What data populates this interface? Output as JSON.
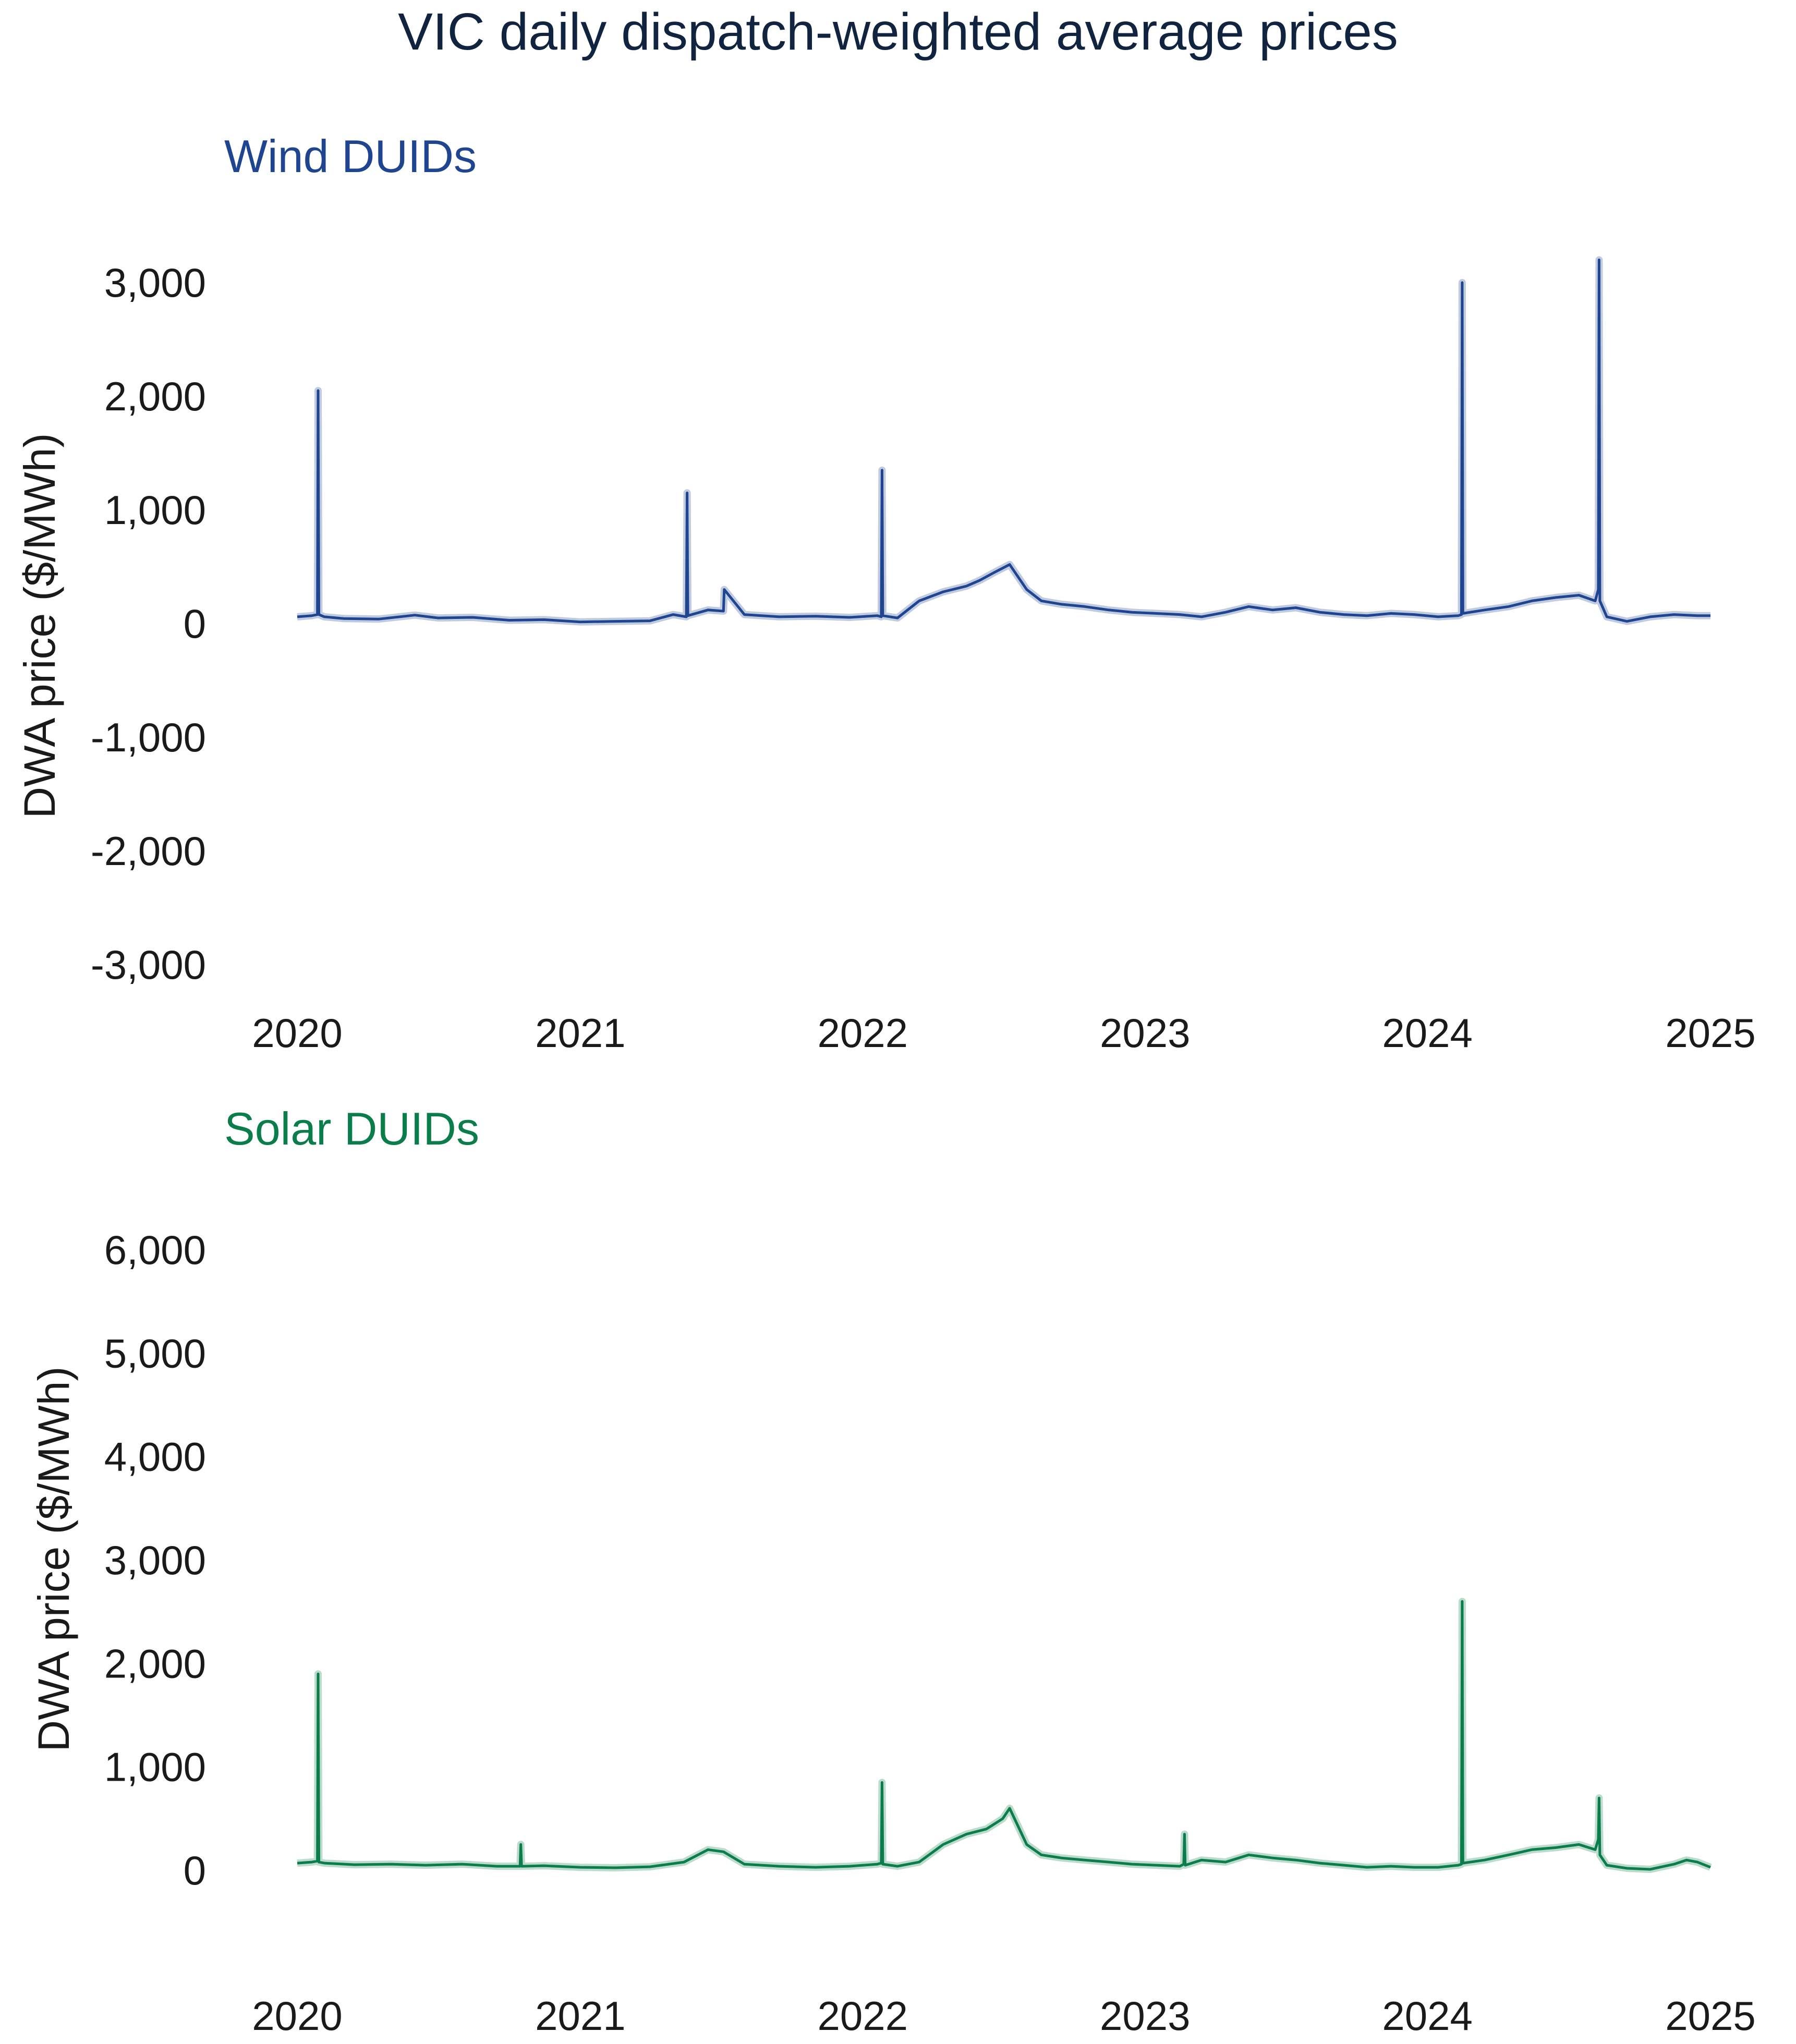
{
  "title": "VIC daily dispatch-weighted average prices",
  "colors": {
    "title": "#10233f",
    "wind": "#1f4591",
    "solar": "#0a7d4b",
    "text": "#1a1a1a"
  },
  "chart_data": [
    {
      "type": "line",
      "subtitle": "Wind DUIDs",
      "color": "#1f4591",
      "ylabel": "DWA price ($/MWh)",
      "xlabel": "",
      "xlim": [
        "2020-01-01",
        "2025-01-01"
      ],
      "ylim": [
        -3000,
        3500
      ],
      "yticks": [
        3000,
        2000,
        1000,
        0,
        -1000,
        -2000,
        -3000
      ],
      "ytick_labels": [
        "3,000",
        "2,000",
        "1,000",
        "0",
        "-1,000",
        "-2,000",
        "-3,000"
      ],
      "xticks": [
        "2020-01-01",
        "2021-01-01",
        "2022-01-01",
        "2023-01-01",
        "2024-01-01",
        "2025-01-01"
      ],
      "xtick_labels": [
        "2020",
        "2021",
        "2022",
        "2023",
        "2024",
        "2025"
      ],
      "grid": false,
      "series": [
        {
          "x": [
            "2020-01-01",
            "2020-01-20",
            "2020-01-27",
            "2020-01-28",
            "2020-01-29",
            "2020-02-05",
            "2020-03-01",
            "2020-04-15",
            "2020-06-01",
            "2020-07-01",
            "2020-08-15",
            "2020-10-01",
            "2020-11-15",
            "2021-01-01",
            "2021-02-15",
            "2021-04-01",
            "2021-05-01",
            "2021-05-18",
            "2021-05-19",
            "2021-05-20",
            "2021-06-15",
            "2021-07-05",
            "2021-07-06",
            "2021-08-01",
            "2021-09-15",
            "2021-11-01",
            "2021-12-15",
            "2022-01-20",
            "2022-01-25",
            "2022-01-26",
            "2022-01-27",
            "2022-02-15",
            "2022-03-15",
            "2022-04-15",
            "2022-05-15",
            "2022-06-01",
            "2022-06-20",
            "2022-07-10",
            "2022-08-01",
            "2022-08-20",
            "2022-09-15",
            "2022-10-15",
            "2022-11-15",
            "2022-12-15",
            "2023-01-15",
            "2023-02-15",
            "2023-03-15",
            "2023-04-15",
            "2023-05-15",
            "2023-06-15",
            "2023-07-15",
            "2023-08-15",
            "2023-09-15",
            "2023-10-15",
            "2023-11-15",
            "2023-12-15",
            "2024-01-15",
            "2024-02-10",
            "2024-02-14",
            "2024-02-15",
            "2024-02-16",
            "2024-03-15",
            "2024-04-15",
            "2024-05-15",
            "2024-06-15",
            "2024-07-15",
            "2024-08-05",
            "2024-08-09",
            "2024-08-10",
            "2024-08-11",
            "2024-08-20",
            "2024-09-15",
            "2024-10-15",
            "2024-11-15",
            "2024-12-15",
            "2025-01-01"
          ],
          "y": [
            60,
            70,
            80,
            2050,
            80,
            60,
            45,
            40,
            75,
            50,
            55,
            30,
            35,
            15,
            20,
            25,
            80,
            60,
            1150,
            70,
            120,
            110,
            300,
            80,
            60,
            65,
            55,
            70,
            60,
            1350,
            70,
            50,
            200,
            280,
            330,
            380,
            450,
            520,
            300,
            200,
            170,
            150,
            120,
            100,
            90,
            80,
            60,
            100,
            150,
            120,
            140,
            100,
            80,
            70,
            90,
            80,
            60,
            70,
            80,
            3000,
            90,
            120,
            150,
            200,
            230,
            250,
            200,
            300,
            3200,
            200,
            60,
            20,
            60,
            80,
            70,
            70
          ]
        }
      ]
    },
    {
      "type": "line",
      "subtitle": "Solar DUIDs",
      "color": "#0a7d4b",
      "ylabel": "DWA price ($/MWh)",
      "xlabel": "",
      "xlim": [
        "2020-01-01",
        "2025-01-01"
      ],
      "ylim": [
        -600,
        6500
      ],
      "yticks": [
        6000,
        5000,
        4000,
        3000,
        2000,
        1000,
        0
      ],
      "ytick_labels": [
        "6,000",
        "5,000",
        "4,000",
        "3,000",
        "2,000",
        "1,000",
        "0"
      ],
      "xticks": [
        "2020-01-01",
        "2021-01-01",
        "2022-01-01",
        "2023-01-01",
        "2024-01-01",
        "2025-01-01"
      ],
      "xtick_labels": [
        "2020",
        "2021",
        "2022",
        "2023",
        "2024",
        "2025"
      ],
      "grid": false,
      "series": [
        {
          "x": [
            "2020-01-01",
            "2020-01-20",
            "2020-01-27",
            "2020-01-28",
            "2020-01-29",
            "2020-02-05",
            "2020-03-15",
            "2020-05-01",
            "2020-06-15",
            "2020-08-01",
            "2020-09-15",
            "2020-10-15",
            "2020-10-16",
            "2020-10-17",
            "2020-11-15",
            "2021-01-01",
            "2021-02-15",
            "2021-04-01",
            "2021-05-15",
            "2021-06-15",
            "2021-07-05",
            "2021-08-01",
            "2021-09-15",
            "2021-11-01",
            "2021-12-15",
            "2022-01-20",
            "2022-01-25",
            "2022-01-26",
            "2022-01-27",
            "2022-02-15",
            "2022-03-15",
            "2022-04-15",
            "2022-05-15",
            "2022-06-10",
            "2022-07-01",
            "2022-07-10",
            "2022-08-01",
            "2022-08-20",
            "2022-09-15",
            "2022-10-15",
            "2022-11-15",
            "2022-12-15",
            "2023-01-15",
            "2023-02-15",
            "2023-02-20",
            "2023-02-21",
            "2023-02-22",
            "2023-03-15",
            "2023-04-15",
            "2023-05-15",
            "2023-06-15",
            "2023-07-15",
            "2023-08-15",
            "2023-09-15",
            "2023-10-15",
            "2023-11-15",
            "2023-12-15",
            "2024-01-15",
            "2024-02-10",
            "2024-02-14",
            "2024-02-15",
            "2024-02-16",
            "2024-03-15",
            "2024-04-15",
            "2024-05-15",
            "2024-06-15",
            "2024-07-15",
            "2024-08-05",
            "2024-08-09",
            "2024-08-10",
            "2024-08-11",
            "2024-08-20",
            "2024-09-15",
            "2024-10-15",
            "2024-11-15",
            "2024-12-01",
            "2024-12-15",
            "2025-01-01"
          ],
          "y": [
            70,
            80,
            90,
            1900,
            80,
            70,
            55,
            60,
            50,
            60,
            40,
            40,
            250,
            40,
            45,
            30,
            25,
            35,
            80,
            200,
            180,
            60,
            40,
            30,
            40,
            60,
            70,
            850,
            60,
            40,
            80,
            250,
            350,
            400,
            500,
            600,
            250,
            150,
            120,
            100,
            80,
            60,
            50,
            40,
            60,
            350,
            50,
            100,
            80,
            150,
            120,
            100,
            70,
            50,
            30,
            40,
            30,
            30,
            50,
            60,
            2600,
            70,
            100,
            150,
            200,
            220,
            250,
            200,
            300,
            700,
            150,
            50,
            20,
            10,
            60,
            100,
            80,
            30
          ]
        }
      ]
    }
  ]
}
